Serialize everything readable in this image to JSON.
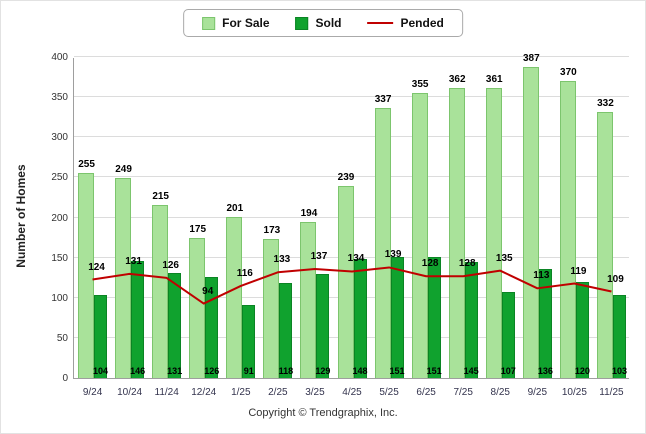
{
  "legend": {
    "for_sale": "For Sale",
    "sold": "Sold",
    "pended": "Pended"
  },
  "footer": {
    "copyright": "Copyright © Trendgraphix, Inc."
  },
  "colors": {
    "for_sale": "#a9e29a",
    "for_sale_border": "#7cc56d",
    "sold": "#10a22e",
    "sold_border": "#0b8424",
    "pended": "#c00000",
    "grid": "#dcdcdc"
  },
  "chart_data": {
    "type": "bar",
    "categories": [
      "9/24",
      "10/24",
      "11/24",
      "12/24",
      "1/25",
      "2/25",
      "3/25",
      "4/25",
      "5/25",
      "6/25",
      "7/25",
      "8/25",
      "9/25",
      "10/25",
      "11/25"
    ],
    "series": [
      {
        "name": "For Sale",
        "type": "bar",
        "values": [
          255,
          249,
          215,
          175,
          201,
          173,
          194,
          239,
          337,
          355,
          362,
          361,
          387,
          370,
          332
        ]
      },
      {
        "name": "Sold",
        "type": "bar",
        "values": [
          104,
          146,
          131,
          126,
          91,
          118,
          129,
          148,
          151,
          151,
          145,
          107,
          136,
          120,
          103
        ]
      },
      {
        "name": "Pended",
        "type": "line",
        "values": [
          124,
          131,
          126,
          94,
          116,
          133,
          137,
          134,
          139,
          128,
          128,
          135,
          113,
          119,
          109
        ]
      }
    ],
    "title": "",
    "xlabel": "",
    "ylabel": "Number of Homes",
    "ylim": [
      0,
      400
    ],
    "ytick_step": 50,
    "grid": true,
    "legend_position": "top"
  }
}
